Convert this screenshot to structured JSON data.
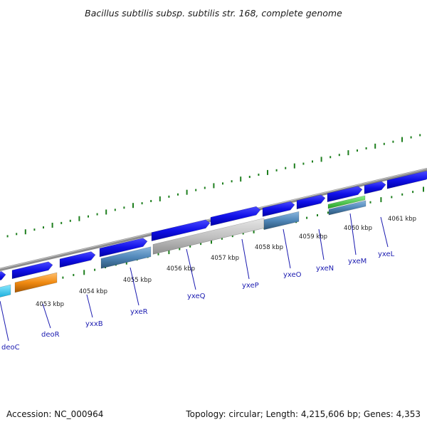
{
  "title": "Bacillus subtilis subsp. subtilis str. 168, complete genome",
  "footer": {
    "accession": "Accession: NC_000964",
    "summary": "Topology: circular; Length: 4,215,606 bp; Genes: 4,353"
  },
  "colors": {
    "backbone": "#8c8c8c",
    "tick": "#1e7f1e",
    "cds": "#1010e8",
    "gene_steel": "#4f86b8",
    "gene_grey": "#bdbdbd",
    "gene_orange": "#f08a12",
    "gene_cyan": "#19c3f0",
    "gene_green": "#3fc43f",
    "label_line": "#1a1ab0"
  },
  "kbp_labels": [
    "4053 kbp",
    "4054 kbp",
    "4055 kbp",
    "4056 kbp",
    "4057 kbp",
    "4058 kbp",
    "4059 kbp",
    "4060 kbp",
    "4061 kbp"
  ],
  "gene_labels": [
    "deoC",
    "deoR",
    "yxxB",
    "yxeR",
    "yxeQ",
    "yxeP",
    "yxeO",
    "yxeN",
    "yxeM",
    "yxeL"
  ]
}
